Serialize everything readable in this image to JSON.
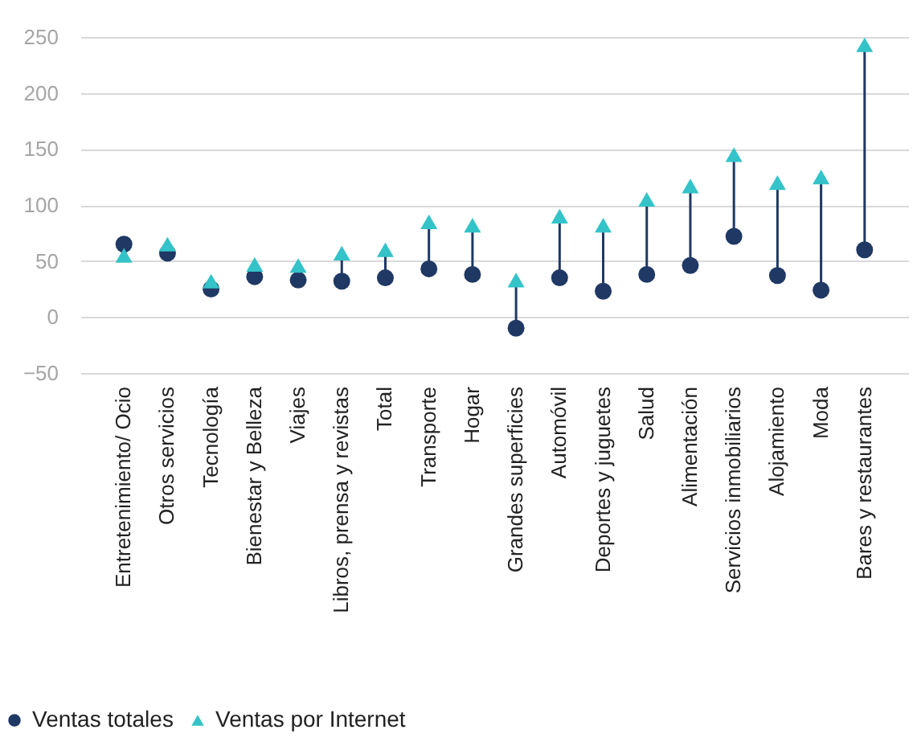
{
  "chart_data": {
    "type": "scatter",
    "categories": [
      "Entretenimiento/ Ocio",
      "Otros servicios",
      "Tecnología",
      "Bienestar y Belleza",
      "Viajes",
      "Libros, prensa y revistas",
      "Total",
      "Transporte",
      "Hogar",
      "Grandes superficies",
      "Automóvil",
      "Deportes y juguetes",
      "Salud",
      "Alimentación",
      "Servicios inmobiliarios",
      "Alojamiento",
      "Moda",
      "Bares y restaurantes"
    ],
    "series": [
      {
        "name": "Ventas totales",
        "color": "#1f3864",
        "marker": "circle",
        "values": [
          65,
          57,
          25,
          36,
          33,
          32,
          35,
          43,
          38,
          -10,
          35,
          23,
          38,
          46,
          72,
          37,
          24,
          60
        ]
      },
      {
        "name": "Ventas por Internet",
        "color": "#33c3c8",
        "marker": "triangle",
        "values": [
          55,
          65,
          32,
          47,
          46,
          57,
          60,
          85,
          82,
          33,
          90,
          82,
          105,
          117,
          145,
          120,
          125,
          243
        ]
      }
    ],
    "ylim": [
      -50,
      250
    ],
    "yticks": [
      -50,
      0,
      50,
      100,
      150,
      200,
      250
    ],
    "grid": "y",
    "legend": "bottom left"
  }
}
